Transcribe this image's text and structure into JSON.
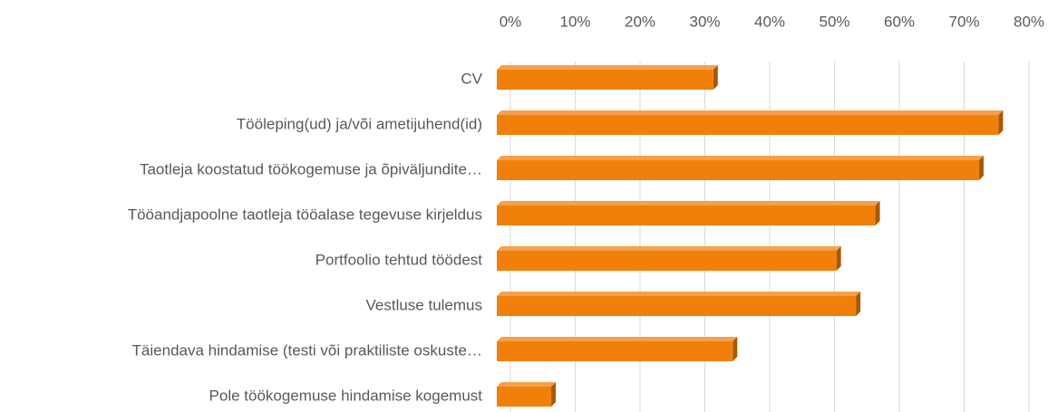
{
  "chart_data": {
    "type": "barh",
    "categories": [
      "CV",
      "Tööleping(ud) ja/või ametijuhend(id)",
      "Taotleja koostatud töökogemuse ja õpiväljundite…",
      "Tööandjapoolne taotleja tööalase tegevuse kirjeldus",
      "Portfoolio tehtud töödest",
      "Vestluse tulemus",
      "Täiendava hindamise (testi või praktiliste oskuste…",
      "Pole töökogemuse hindamise kogemust"
    ],
    "values": [
      32,
      76,
      73,
      57,
      51,
      54,
      35,
      7
    ],
    "color": "#f0800a",
    "xlim": [
      0,
      80
    ],
    "xticks": [
      {
        "value": 0,
        "label": "0%"
      },
      {
        "value": 10,
        "label": "10%"
      },
      {
        "value": 20,
        "label": "20%"
      },
      {
        "value": 30,
        "label": "30%"
      },
      {
        "value": 40,
        "label": "40%"
      },
      {
        "value": 50,
        "label": "50%"
      },
      {
        "value": 60,
        "label": "60%"
      },
      {
        "value": 70,
        "label": "70%"
      },
      {
        "value": 80,
        "label": "80%"
      }
    ],
    "grid": true
  }
}
